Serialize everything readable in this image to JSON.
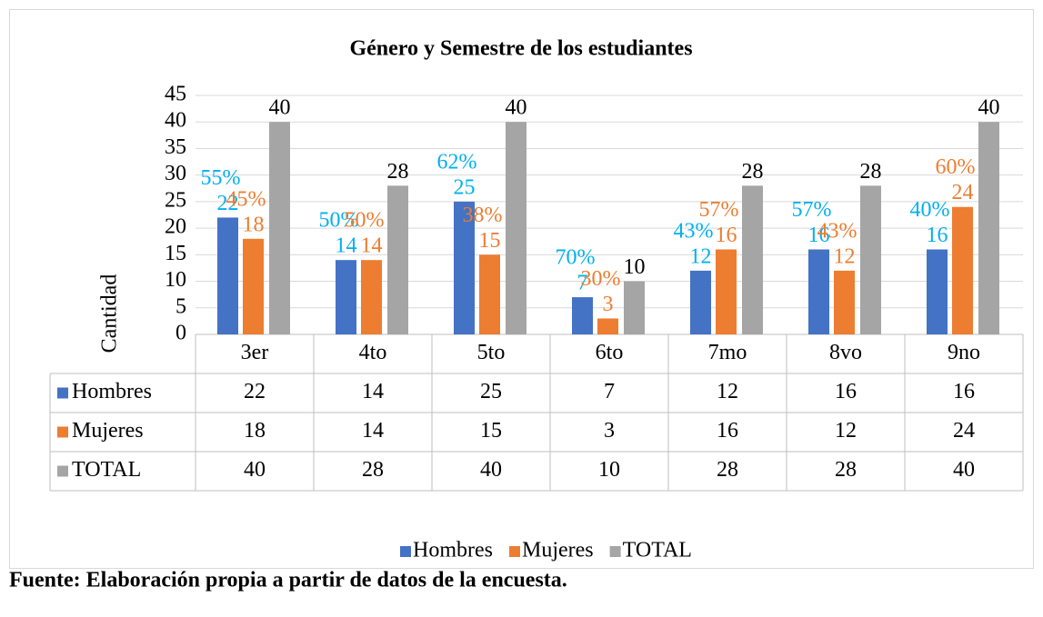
{
  "chart_data": {
    "type": "bar",
    "title": "Género y Semestre de los estudiantes",
    "y_label": "Cantidad",
    "categories": [
      "3er",
      "4to",
      "5to",
      "6to",
      "7mo",
      "8vo",
      "9no"
    ],
    "series": [
      {
        "name": "Hombres",
        "color": "#4472c4",
        "values": [
          22,
          14,
          25,
          7,
          12,
          16,
          16
        ],
        "share_color": "#00b0f0",
        "share_labels": [
          "55%",
          "50%",
          "62%",
          "70%",
          "43%",
          "57%",
          "40%"
        ]
      },
      {
        "name": "Mujeres",
        "color": "#ed7d31",
        "values": [
          18,
          14,
          15,
          3,
          16,
          12,
          24
        ],
        "share_color": "#ed7d31",
        "share_labels": [
          "45%",
          "50%",
          "38%",
          "30%",
          "57%",
          "43%",
          "60%"
        ]
      },
      {
        "name": "TOTAL",
        "color": "#a5a5a5",
        "values": [
          40,
          28,
          40,
          10,
          28,
          28,
          40
        ]
      }
    ],
    "ylim": [
      0,
      45
    ],
    "yticks": [
      0,
      5,
      10,
      15,
      20,
      25,
      30,
      35,
      40,
      45
    ],
    "grid": true,
    "legend": "bottom",
    "source": "Fuente: Elaboración propia a partir de datos de la encuesta."
  }
}
